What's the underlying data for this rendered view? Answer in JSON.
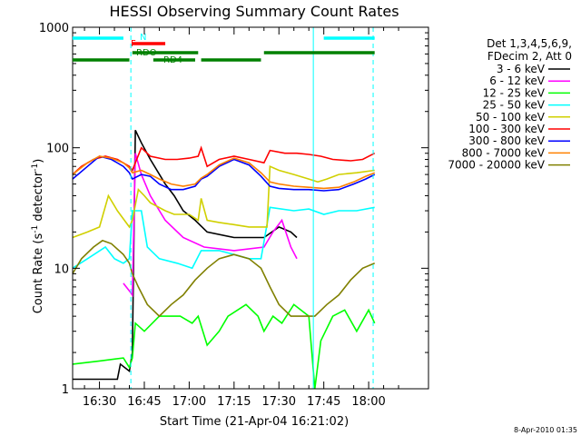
{
  "chart_data": {
    "type": "line",
    "title": "HESSI Observing Summary Count Rates",
    "xlabel": "Start Time (21-Apr-04 16:21:02)",
    "ylabel_main": "Count Rate (s",
    "ylabel_sup1": "-1",
    "ylabel_mid": " detector",
    "ylabel_sup2": "-1",
    "ylabel_end": ")",
    "yscale": "log",
    "xlim": [
      21.03,
      140
    ],
    "ylim": [
      1,
      1000
    ],
    "xticks": [
      {
        "t": 30,
        "label": "16:30"
      },
      {
        "t": 45,
        "label": "16:45"
      },
      {
        "t": 60,
        "label": "17:00"
      },
      {
        "t": 75,
        "label": "17:15"
      },
      {
        "t": 90,
        "label": "17:30"
      },
      {
        "t": 105,
        "label": "17:45"
      },
      {
        "t": 120,
        "label": "18:00"
      }
    ],
    "yticks": [
      {
        "v": 1,
        "label": "1"
      },
      {
        "v": 10,
        "label": "10"
      },
      {
        "v": 100,
        "label": "100"
      },
      {
        "v": 1000,
        "label": "1000"
      }
    ],
    "legend_header": [
      "Det 1,3,4,5,6,9,",
      "FDecim 2, Att 0"
    ],
    "legend_position": "right",
    "series": [
      {
        "name": "3 - 6 keV",
        "color": "#000000",
        "points": [
          [
            21,
            1.2
          ],
          [
            36,
            1.2
          ],
          [
            37,
            1.6
          ],
          [
            40,
            1.4
          ],
          [
            41,
            2
          ],
          [
            42,
            140
          ],
          [
            44,
            110
          ],
          [
            47,
            80
          ],
          [
            52,
            50
          ],
          [
            55,
            40
          ],
          [
            58,
            30
          ],
          [
            62,
            25
          ],
          [
            66,
            20
          ],
          [
            75,
            18
          ],
          [
            85,
            18
          ],
          [
            90,
            22
          ],
          [
            94,
            20
          ],
          [
            96,
            18
          ]
        ]
      },
      {
        "name": "6 - 12 keV",
        "color": "#ff00ff",
        "points": [
          [
            38,
            7.5
          ],
          [
            40,
            6.5
          ],
          [
            41,
            6
          ],
          [
            42,
            90
          ],
          [
            44,
            60
          ],
          [
            47,
            40
          ],
          [
            52,
            25
          ],
          [
            58,
            18
          ],
          [
            65,
            15
          ],
          [
            75,
            14
          ],
          [
            85,
            15
          ],
          [
            88,
            20
          ],
          [
            91,
            25
          ],
          [
            94,
            15
          ],
          [
            96,
            12
          ]
        ]
      },
      {
        "name": "12 - 25 keV",
        "color": "#00ff00",
        "points": [
          [
            21,
            1.6
          ],
          [
            30,
            1.7
          ],
          [
            38,
            1.8
          ],
          [
            40,
            1.5
          ],
          [
            41,
            1.8
          ],
          [
            42,
            3.5
          ],
          [
            45,
            3
          ],
          [
            50,
            4
          ],
          [
            57,
            4
          ],
          [
            61,
            3.5
          ],
          [
            63,
            4
          ],
          [
            66,
            2.3
          ],
          [
            70,
            3
          ],
          [
            73,
            4
          ],
          [
            79,
            5
          ],
          [
            83,
            4
          ],
          [
            85,
            3
          ],
          [
            88,
            4
          ],
          [
            91,
            3.5
          ],
          [
            95,
            5
          ],
          [
            100,
            4
          ],
          [
            102,
            1.0
          ],
          [
            104,
            2.5
          ],
          [
            108,
            4
          ],
          [
            112,
            4.5
          ],
          [
            116,
            3
          ],
          [
            120,
            4.5
          ],
          [
            122,
            3.5
          ]
        ]
      },
      {
        "name": "25 - 50 keV",
        "color": "#00ffff",
        "points": [
          [
            21,
            10
          ],
          [
            26,
            12
          ],
          [
            32,
            15
          ],
          [
            35,
            12
          ],
          [
            38,
            11
          ],
          [
            40,
            12
          ],
          [
            41,
            30
          ],
          [
            44,
            30
          ],
          [
            46,
            15
          ],
          [
            50,
            12
          ],
          [
            56,
            11
          ],
          [
            61,
            10
          ],
          [
            64,
            14
          ],
          [
            70,
            14
          ],
          [
            75,
            13
          ],
          [
            80,
            12
          ],
          [
            84,
            12
          ],
          [
            87,
            32
          ],
          [
            95,
            30
          ],
          [
            100,
            31
          ],
          [
            105,
            28
          ],
          [
            110,
            30
          ],
          [
            116,
            30
          ],
          [
            122,
            32
          ]
        ]
      },
      {
        "name": "50 - 100 keV",
        "color": "#d0d000",
        "points": [
          [
            21,
            18
          ],
          [
            26,
            20
          ],
          [
            30,
            22
          ],
          [
            33,
            40
          ],
          [
            36,
            30
          ],
          [
            40,
            22
          ],
          [
            41,
            25
          ],
          [
            43,
            45
          ],
          [
            45,
            40
          ],
          [
            47,
            35
          ],
          [
            52,
            30
          ],
          [
            55,
            28
          ],
          [
            60,
            28
          ],
          [
            63,
            25
          ],
          [
            64,
            38
          ],
          [
            66,
            25
          ],
          [
            70,
            24
          ],
          [
            75,
            23
          ],
          [
            80,
            22
          ],
          [
            85,
            22
          ],
          [
            86,
            22
          ],
          [
            87,
            70
          ],
          [
            90,
            65
          ],
          [
            95,
            60
          ],
          [
            100,
            55
          ],
          [
            103,
            52
          ],
          [
            106,
            55
          ],
          [
            110,
            60
          ],
          [
            116,
            62
          ],
          [
            122,
            65
          ]
        ]
      },
      {
        "name": "100 - 300 keV",
        "color": "#ff0000",
        "points": [
          [
            21,
            60
          ],
          [
            24,
            70
          ],
          [
            28,
            80
          ],
          [
            32,
            85
          ],
          [
            36,
            80
          ],
          [
            40,
            70
          ],
          [
            41,
            65
          ],
          [
            44,
            100
          ],
          [
            47,
            85
          ],
          [
            52,
            80
          ],
          [
            56,
            80
          ],
          [
            60,
            82
          ],
          [
            63,
            85
          ],
          [
            64,
            100
          ],
          [
            66,
            70
          ],
          [
            70,
            80
          ],
          [
            75,
            85
          ],
          [
            80,
            80
          ],
          [
            85,
            75
          ],
          [
            87,
            95
          ],
          [
            92,
            90
          ],
          [
            96,
            90
          ],
          [
            100,
            88
          ],
          [
            104,
            85
          ],
          [
            108,
            80
          ],
          [
            114,
            78
          ],
          [
            118,
            80
          ],
          [
            122,
            90
          ]
        ]
      },
      {
        "name": "300 - 800 keV",
        "color": "#0000ff",
        "points": [
          [
            21,
            55
          ],
          [
            26,
            70
          ],
          [
            30,
            85
          ],
          [
            34,
            80
          ],
          [
            38,
            70
          ],
          [
            40,
            62
          ],
          [
            41,
            55
          ],
          [
            44,
            60
          ],
          [
            47,
            58
          ],
          [
            50,
            50
          ],
          [
            54,
            45
          ],
          [
            58,
            45
          ],
          [
            62,
            48
          ],
          [
            64,
            55
          ],
          [
            66,
            58
          ],
          [
            70,
            70
          ],
          [
            75,
            80
          ],
          [
            80,
            72
          ],
          [
            84,
            58
          ],
          [
            87,
            48
          ],
          [
            90,
            46
          ],
          [
            95,
            45
          ],
          [
            100,
            45
          ],
          [
            105,
            44
          ],
          [
            110,
            45
          ],
          [
            115,
            50
          ],
          [
            119,
            55
          ],
          [
            122,
            60
          ]
        ]
      },
      {
        "name": "800 - 7000 keV",
        "color": "#ff8000",
        "points": [
          [
            21,
            60
          ],
          [
            26,
            75
          ],
          [
            30,
            85
          ],
          [
            34,
            82
          ],
          [
            38,
            75
          ],
          [
            40,
            68
          ],
          [
            41,
            62
          ],
          [
            44,
            65
          ],
          [
            47,
            60
          ],
          [
            50,
            55
          ],
          [
            54,
            50
          ],
          [
            58,
            48
          ],
          [
            62,
            50
          ],
          [
            64,
            56
          ],
          [
            66,
            60
          ],
          [
            70,
            72
          ],
          [
            75,
            82
          ],
          [
            80,
            75
          ],
          [
            84,
            62
          ],
          [
            87,
            52
          ],
          [
            90,
            50
          ],
          [
            95,
            48
          ],
          [
            100,
            47
          ],
          [
            105,
            46
          ],
          [
            110,
            47
          ],
          [
            115,
            52
          ],
          [
            119,
            58
          ],
          [
            122,
            62
          ]
        ]
      },
      {
        "name": "7000 - 20000 keV",
        "color": "#808000",
        "points": [
          [
            21,
            9
          ],
          [
            24,
            12
          ],
          [
            28,
            15
          ],
          [
            31,
            17
          ],
          [
            34,
            16
          ],
          [
            38,
            13
          ],
          [
            40,
            11
          ],
          [
            41,
            9
          ],
          [
            43,
            7
          ],
          [
            46,
            5
          ],
          [
            50,
            4
          ],
          [
            54,
            5
          ],
          [
            58,
            6
          ],
          [
            62,
            8
          ],
          [
            66,
            10
          ],
          [
            70,
            12
          ],
          [
            75,
            13
          ],
          [
            80,
            12
          ],
          [
            84,
            10
          ],
          [
            87,
            7
          ],
          [
            90,
            5
          ],
          [
            94,
            4
          ],
          [
            98,
            4
          ],
          [
            102,
            4
          ],
          [
            106,
            5
          ],
          [
            110,
            6
          ],
          [
            114,
            8
          ],
          [
            118,
            10
          ],
          [
            122,
            11
          ]
        ]
      }
    ],
    "flags": [
      {
        "label": "N",
        "color": "#00ffff",
        "segments": [
          [
            21,
            38
          ],
          [
            105,
            122
          ]
        ]
      },
      {
        "label": "F",
        "color": "#ff0000",
        "segments": [
          [
            41,
            52
          ]
        ]
      },
      {
        "label": "RDO",
        "color": "#008000",
        "segments": [
          [
            41,
            63
          ],
          [
            85,
            122
          ]
        ]
      },
      {
        "label": "RD4",
        "color": "#008000",
        "segments": [
          [
            21,
            40
          ],
          [
            48,
            62
          ],
          [
            64,
            84
          ]
        ]
      }
    ],
    "vlines": [
      {
        "t": 40.5,
        "style": "dashed"
      },
      {
        "t": 101.5,
        "style": "solid"
      },
      {
        "t": 121.5,
        "style": "dashed"
      }
    ]
  },
  "footer": {
    "date": "8-Apr-2010 01:35"
  }
}
